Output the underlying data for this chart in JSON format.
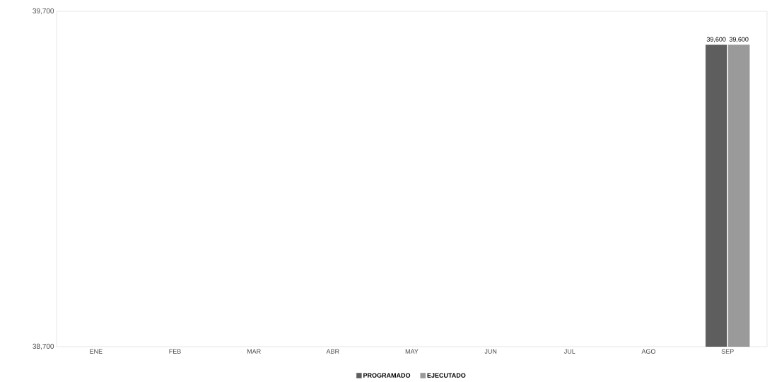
{
  "chart_data": {
    "type": "bar",
    "categories": [
      "ENE",
      "FEB",
      "MAR",
      "ABR",
      "MAY",
      "JUN",
      "JUL",
      "AGO",
      "SEP"
    ],
    "series": [
      {
        "name": "PROGRAMADO",
        "color": "#5e5e5e",
        "values": [
          null,
          null,
          null,
          null,
          null,
          null,
          null,
          null,
          39600
        ],
        "value_labels": [
          null,
          null,
          null,
          null,
          null,
          null,
          null,
          null,
          "39,600"
        ]
      },
      {
        "name": "EJECUTADO",
        "color": "#9a9a9a",
        "values": [
          null,
          null,
          null,
          null,
          null,
          null,
          null,
          null,
          39600
        ],
        "value_labels": [
          null,
          null,
          null,
          null,
          null,
          null,
          null,
          null,
          "39,600"
        ]
      }
    ],
    "ylim": [
      38700,
      39700
    ],
    "yticks": [
      {
        "value": 38700,
        "label": "38,700"
      },
      {
        "value": 39700,
        "label": "39,700"
      }
    ],
    "legend": "bottom",
    "grid": false
  }
}
